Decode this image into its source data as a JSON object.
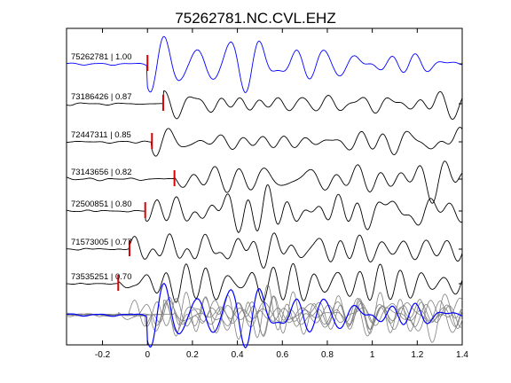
{
  "chart_data": {
    "type": "line",
    "title": "75262781.NC.CVL.EHZ",
    "xlim": [
      -0.36,
      1.4
    ],
    "xticks": [
      -0.2,
      0,
      0.2,
      0.4,
      0.6,
      0.8,
      1,
      1.2,
      1.4
    ],
    "xtick_labels": [
      "-0.2",
      "0",
      "0.2",
      "0.4",
      "0.6",
      "0.8",
      "1",
      "1.2",
      "1.4"
    ],
    "grid": false,
    "traces": [
      {
        "name": "75262781 | 1.00",
        "pick_time": 0.0,
        "color": "#0000ff",
        "marker_color": "#dd0000"
      },
      {
        "name": "73186426 | 0.87",
        "pick_time": 0.07,
        "color": "#000000",
        "marker_color": "#dd0000"
      },
      {
        "name": "72447311 | 0.85",
        "pick_time": 0.02,
        "color": "#000000",
        "marker_color": "#dd0000"
      },
      {
        "name": "73143656 | 0.82",
        "pick_time": 0.12,
        "color": "#000000",
        "marker_color": "#dd0000"
      },
      {
        "name": "72500851 | 0.80",
        "pick_time": -0.01,
        "color": "#000000",
        "marker_color": "#dd0000"
      },
      {
        "name": "71573005 | 0.77",
        "pick_time": -0.08,
        "color": "#000000",
        "marker_color": "#dd0000"
      },
      {
        "name": "73535251 | 0.70",
        "pick_time": -0.13,
        "color": "#000000",
        "marker_color": "#dd0000"
      }
    ],
    "stack": {
      "reference_color": "#0000ff",
      "others_color": "#808080"
    }
  }
}
